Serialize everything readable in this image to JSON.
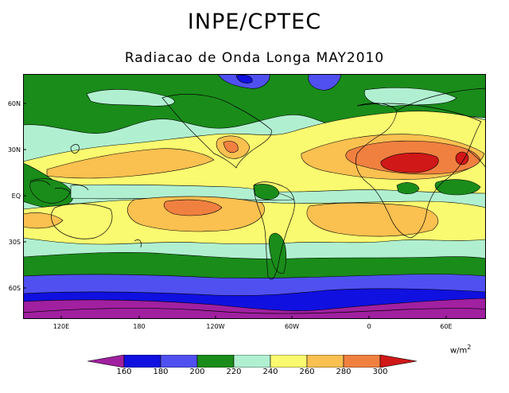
{
  "header": {
    "title": "INPE/CPTEC",
    "subtitle": "Radiacao de Onda Longa MAY2010"
  },
  "map": {
    "lat_labels": [
      "60N",
      "30N",
      "EQ",
      "30S",
      "60S"
    ],
    "lon_labels": [
      "120E",
      "180",
      "120W",
      "60W",
      "0",
      "60E"
    ],
    "colors": {
      "lt160": "#a020a0",
      "160_180": "#1010e0",
      "180_200": "#5050f0",
      "200_220": "#1a8c1a",
      "220_240": "#b0f0d0",
      "240_260": "#fafa70",
      "260_280": "#fac050",
      "280_300": "#f08040",
      "gt300": "#d01818"
    }
  },
  "legend": {
    "units": "w/m",
    "units_exp": "2",
    "ticks": [
      "160",
      "180",
      "200",
      "220",
      "240",
      "260",
      "280",
      "300"
    ]
  }
}
